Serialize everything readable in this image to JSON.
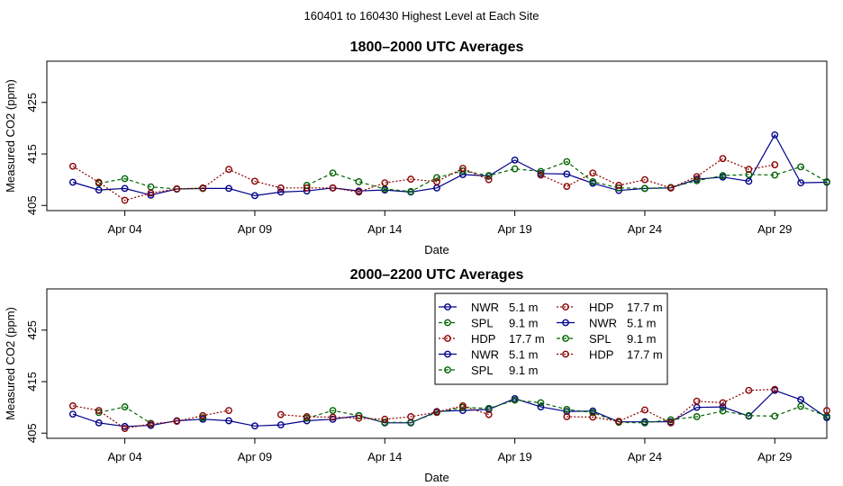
{
  "figure": {
    "suptitle": "160401  to  160430 Highest Level at Each Site"
  },
  "chart_data": [
    {
      "type": "line",
      "title": "1800–2000 UTC Averages",
      "xlabel": "Date",
      "ylabel": "Measured CO2 (ppm)",
      "xlim": [
        1,
        31
      ],
      "ylim": [
        404,
        433
      ],
      "x_tick_values": [
        4,
        9,
        14,
        19,
        24,
        29
      ],
      "x_tick_labels": [
        "Apr 04",
        "Apr 09",
        "Apr 14",
        "Apr 19",
        "Apr 24",
        "Apr 29"
      ],
      "y_tick_values": [
        405,
        415,
        425
      ],
      "y_tick_labels": [
        "405",
        "415",
        "425"
      ],
      "series": [
        {
          "name": "NWR",
          "height": "5.1 m",
          "color": "#00008b",
          "lty": "solid",
          "x": [
            2,
            3,
            4,
            5,
            6,
            7,
            8,
            9,
            10,
            11,
            12,
            13,
            14,
            15,
            16,
            17,
            18,
            19,
            20,
            21,
            22,
            23,
            24,
            25,
            26,
            27,
            28,
            29,
            30,
            31
          ],
          "values": [
            409.5,
            408.0,
            408.3,
            407.0,
            408.2,
            408.3,
            408.3,
            406.9,
            407.6,
            407.8,
            408.4,
            407.8,
            408.0,
            407.6,
            408.4,
            411.0,
            410.7,
            413.8,
            411.2,
            411.1,
            409.3,
            407.9,
            408.3,
            408.4,
            410.1,
            410.5,
            409.7,
            418.7,
            409.4,
            409.5
          ]
        },
        {
          "name": "SPL",
          "height": "9.1 m",
          "color": "#006400",
          "lty": "dashed",
          "x": [
            2,
            3,
            4,
            5,
            6,
            7,
            8,
            9,
            10,
            11,
            12,
            13,
            14,
            15,
            16,
            17,
            18,
            19,
            20,
            21,
            22,
            23,
            24,
            25,
            26,
            27,
            28,
            29,
            30,
            31
          ],
          "values": [
            null,
            409.3,
            410.2,
            408.6,
            408.2,
            408.3,
            null,
            null,
            null,
            408.9,
            411.3,
            409.6,
            408.2,
            407.7,
            410.4,
            411.7,
            410.8,
            412.1,
            411.6,
            413.5,
            409.6,
            408.4,
            408.3,
            408.5,
            409.8,
            410.8,
            411.0,
            410.9,
            412.5,
            409.6
          ]
        },
        {
          "name": "HDP",
          "height": "17.7 m",
          "color": "#8b0000",
          "lty": "dotted",
          "x": [
            2,
            3,
            4,
            5,
            6,
            7,
            8,
            9,
            10,
            11,
            12,
            13,
            14,
            15,
            16,
            17,
            18,
            19,
            20,
            21,
            22,
            23,
            24,
            25,
            26,
            27,
            28,
            29,
            30,
            31
          ],
          "values": [
            412.6,
            409.5,
            406.0,
            407.4,
            408.2,
            408.4,
            412.0,
            409.7,
            408.4,
            408.4,
            408.4,
            407.6,
            409.4,
            410.1,
            409.6,
            412.2,
            410.0,
            null,
            410.9,
            408.7,
            411.3,
            408.9,
            410.0,
            408.4,
            410.6,
            414.1,
            412.0,
            412.9,
            null,
            null
          ]
        }
      ]
    },
    {
      "type": "line",
      "title": "2000–2200 UTC Averages",
      "xlabel": "Date",
      "ylabel": "Measured CO2 (ppm)",
      "xlim": [
        1,
        31
      ],
      "ylim": [
        404,
        433
      ],
      "x_tick_values": [
        4,
        9,
        14,
        19,
        24,
        29
      ],
      "x_tick_labels": [
        "Apr 04",
        "Apr 09",
        "Apr 14",
        "Apr 19",
        "Apr 24",
        "Apr 29"
      ],
      "y_tick_values": [
        405,
        415,
        425
      ],
      "y_tick_labels": [
        "405",
        "415",
        "425"
      ],
      "legend": {
        "position": "top-right",
        "entries": [
          {
            "name": "NWR",
            "height": "5.1 m",
            "color": "#00008b"
          },
          {
            "name": "SPL",
            "height": "9.1 m",
            "color": "#006400"
          },
          {
            "name": "HDP",
            "height": "17.7 m",
            "color": "#8b0000"
          },
          {
            "name": "NWR",
            "height": "5.1 m",
            "color": "#00008b"
          },
          {
            "name": "SPL",
            "height": "9.1 m",
            "color": "#006400"
          },
          {
            "name": "HDP",
            "height": "17.7 m",
            "color": "#8b0000"
          },
          {
            "name": "NWR",
            "height": "5.1 m",
            "color": "#00008b"
          },
          {
            "name": "SPL",
            "height": "9.1 m",
            "color": "#006400"
          },
          {
            "name": "HDP",
            "height": "17.7 m",
            "color": "#8b0000"
          }
        ]
      },
      "series": [
        {
          "name": "NWR",
          "height": "5.1 m",
          "color": "#00008b",
          "lty": "solid",
          "x": [
            2,
            3,
            4,
            5,
            6,
            7,
            8,
            9,
            10,
            11,
            12,
            13,
            14,
            15,
            16,
            17,
            18,
            19,
            20,
            21,
            22,
            23,
            24,
            25,
            26,
            27,
            28,
            29,
            30,
            31
          ],
          "values": [
            408.7,
            407.0,
            406.3,
            406.5,
            407.4,
            407.7,
            407.4,
            406.4,
            406.6,
            407.4,
            407.7,
            408.4,
            407.0,
            407.0,
            409.2,
            409.4,
            409.6,
            411.7,
            410.1,
            409.2,
            409.3,
            407.2,
            407.2,
            407.2,
            410.0,
            410.1,
            408.3,
            413.3,
            411.5,
            408.0
          ]
        },
        {
          "name": "SPL",
          "height": "9.1 m",
          "color": "#006400",
          "lty": "dashed",
          "x": [
            2,
            3,
            4,
            5,
            6,
            7,
            8,
            9,
            10,
            11,
            12,
            13,
            14,
            15,
            16,
            17,
            18,
            19,
            20,
            21,
            22,
            23,
            24,
            25,
            26,
            27,
            28,
            29,
            30,
            31
          ],
          "values": [
            null,
            409.0,
            410.1,
            406.9,
            null,
            408.0,
            null,
            null,
            null,
            407.9,
            409.4,
            408.4,
            407.1,
            407.1,
            409.0,
            410.0,
            409.8,
            411.4,
            410.9,
            409.6,
            409.0,
            407.1,
            407.0,
            407.6,
            408.2,
            409.3,
            408.4,
            408.3,
            410.2,
            408.3
          ]
        },
        {
          "name": "HDP",
          "height": "17.7 m",
          "color": "#8b0000",
          "lty": "dotted",
          "x": [
            2,
            3,
            4,
            5,
            6,
            7,
            8,
            9,
            10,
            11,
            12,
            13,
            14,
            15,
            16,
            17,
            18,
            19,
            20,
            21,
            22,
            23,
            24,
            25,
            26,
            27,
            28,
            29,
            30,
            31
          ],
          "values": [
            410.3,
            409.4,
            405.9,
            406.8,
            407.3,
            408.4,
            409.4,
            null,
            408.6,
            408.2,
            408.1,
            407.9,
            407.7,
            408.2,
            409.1,
            410.3,
            408.6,
            null,
            null,
            408.2,
            408.1,
            407.3,
            409.5,
            407.0,
            411.2,
            410.9,
            413.3,
            413.5,
            null,
            409.4
          ]
        }
      ]
    }
  ]
}
